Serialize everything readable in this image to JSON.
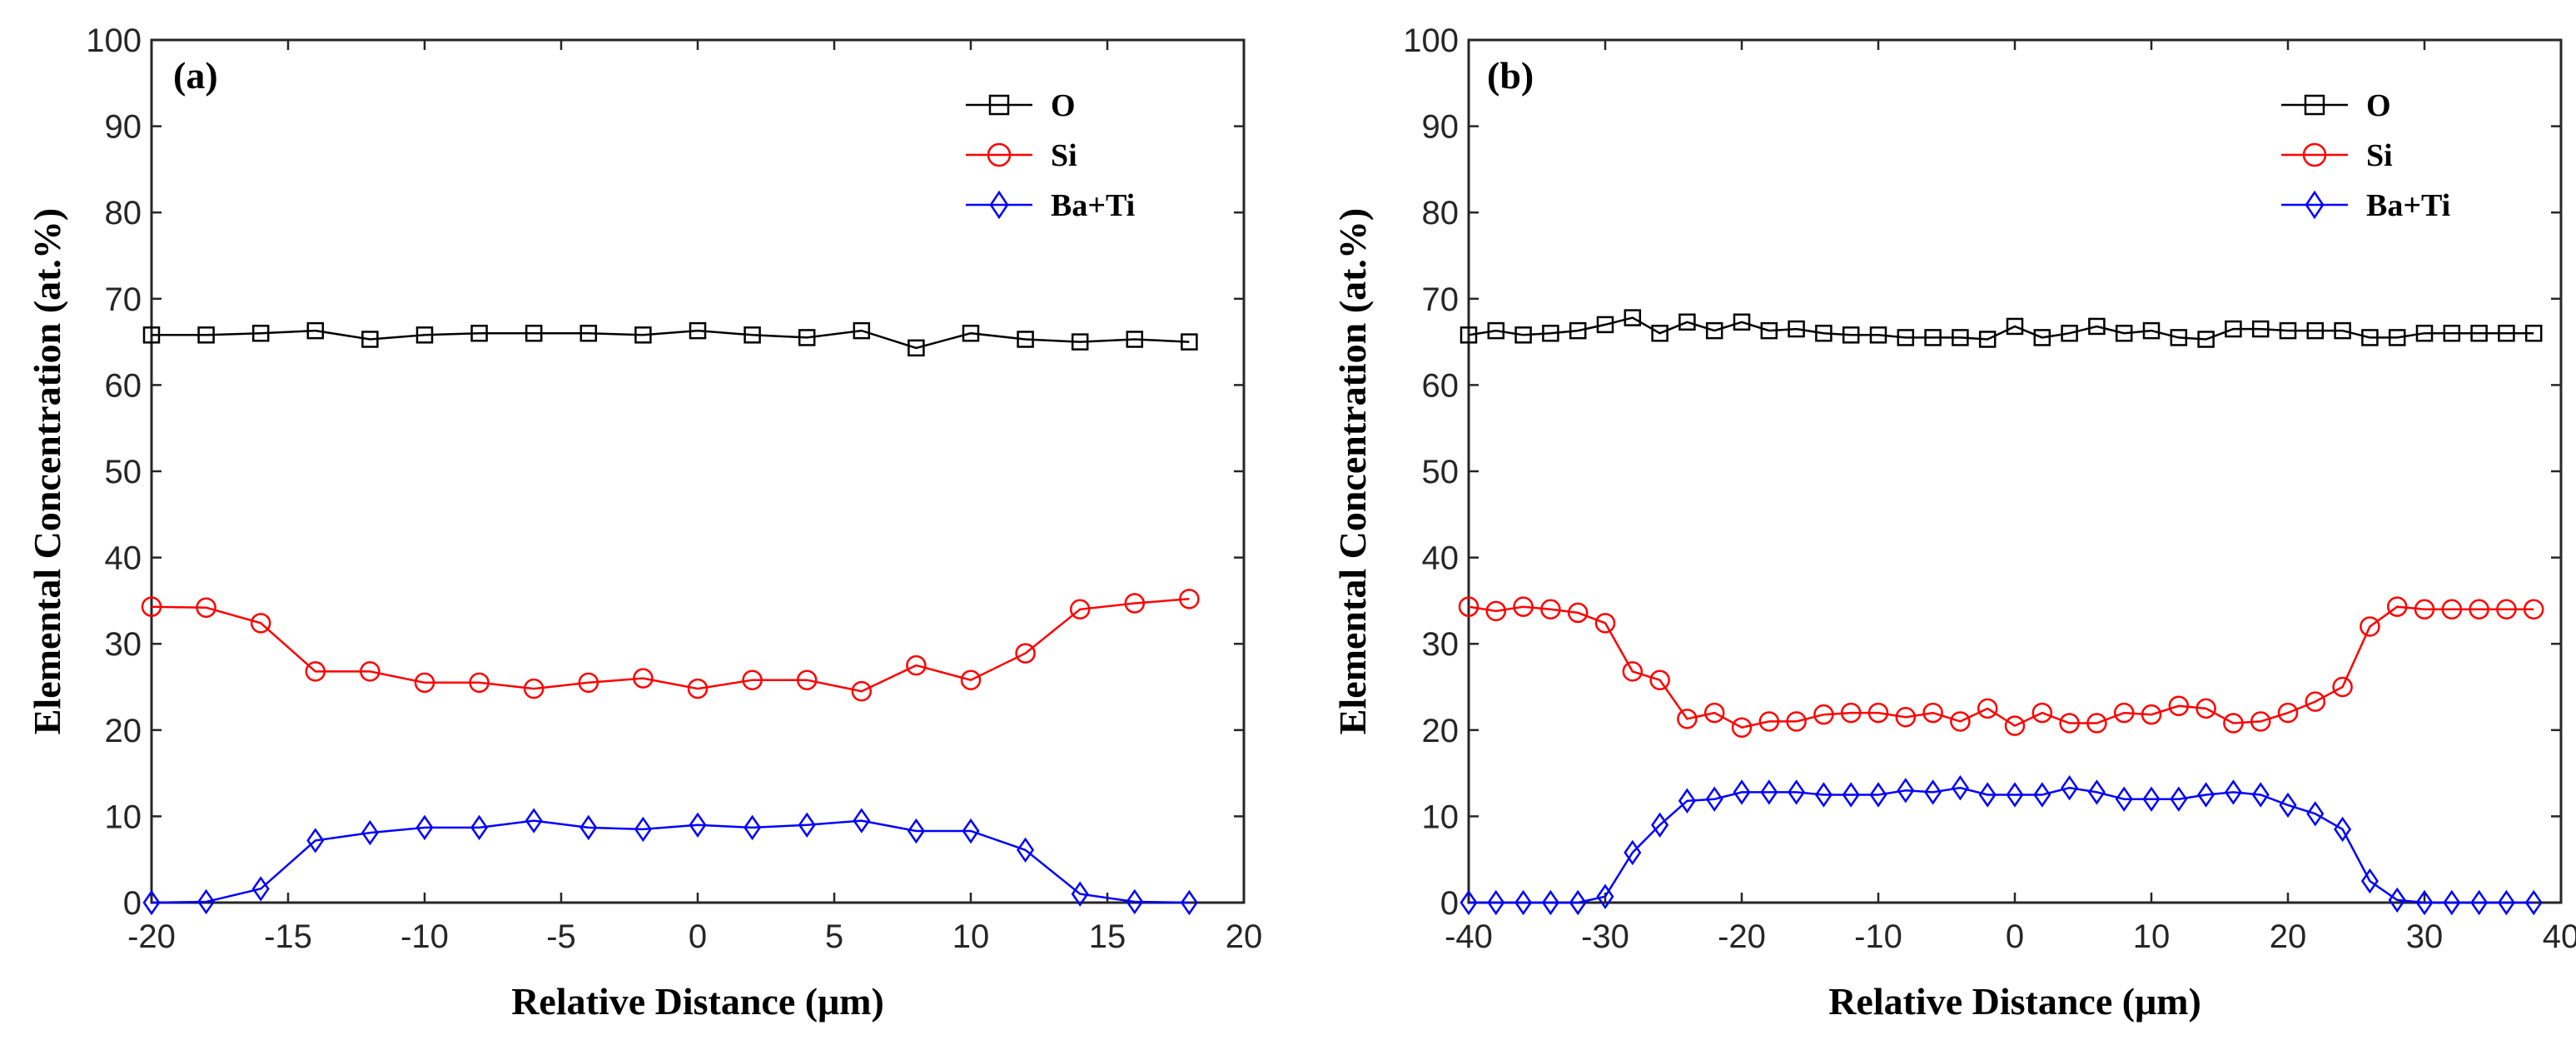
{
  "chart_data": [
    {
      "type": "line",
      "panel_label": "(a)",
      "xlabel": "Relative Distance (μm)",
      "ylabel": "Elemental Concentration (at.%)",
      "xlim": [
        -20,
        20
      ],
      "ylim": [
        0,
        100
      ],
      "xticks": [
        -20,
        -15,
        -10,
        -5,
        0,
        5,
        10,
        15,
        20
      ],
      "yticks": [
        0,
        10,
        20,
        30,
        40,
        50,
        60,
        70,
        80,
        90,
        100
      ],
      "legend_position": "top-right",
      "x": [
        -20,
        -18,
        -16,
        -14,
        -12,
        -10,
        -8,
        -6,
        -4,
        -2,
        0,
        2,
        4,
        6,
        8,
        10,
        12,
        14,
        16,
        18
      ],
      "series": [
        {
          "name": "O",
          "color": "#000000",
          "marker": "square",
          "values": [
            65.8,
            65.8,
            66.0,
            66.3,
            65.3,
            65.8,
            66.0,
            66.0,
            66.0,
            65.8,
            66.3,
            65.8,
            65.5,
            66.3,
            64.3,
            66.0,
            65.3,
            65.0,
            65.3,
            65.0
          ]
        },
        {
          "name": "Si",
          "color": "#ff0000",
          "marker": "circle",
          "values": [
            34.3,
            34.2,
            32.4,
            26.8,
            26.8,
            25.5,
            25.5,
            24.8,
            25.5,
            26.0,
            24.8,
            25.8,
            25.8,
            24.5,
            27.5,
            25.8,
            28.9,
            34.0,
            34.7,
            35.2
          ]
        },
        {
          "name": "Ba+Ti",
          "color": "#0000ff",
          "marker": "diamond",
          "values": [
            0.0,
            0.1,
            1.6,
            7.2,
            8.1,
            8.7,
            8.7,
            9.5,
            8.7,
            8.5,
            9.0,
            8.7,
            9.0,
            9.5,
            8.3,
            8.3,
            6.1,
            1.0,
            0.1,
            0.0
          ]
        }
      ]
    },
    {
      "type": "line",
      "panel_label": "(b)",
      "xlabel": "Relative Distance (μm)",
      "ylabel": "Elemental Concentration (at.%)",
      "xlim": [
        -40,
        40
      ],
      "ylim": [
        0,
        100
      ],
      "xticks": [
        -40,
        -30,
        -20,
        -10,
        0,
        10,
        20,
        30,
        40
      ],
      "yticks": [
        0,
        10,
        20,
        30,
        40,
        50,
        60,
        70,
        80,
        90,
        100
      ],
      "legend_position": "top-right",
      "x": [
        -40,
        -38,
        -36,
        -34,
        -32,
        -30,
        -28,
        -26,
        -24,
        -22,
        -20,
        -18,
        -16,
        -14,
        -12,
        -10,
        -8,
        -6,
        -4,
        -2,
        0,
        2,
        4,
        6,
        8,
        10,
        12,
        14,
        16,
        18,
        20,
        22,
        24,
        26,
        28,
        30,
        32,
        34,
        36,
        38
      ],
      "series": [
        {
          "name": "O",
          "color": "#000000",
          "marker": "square",
          "values": [
            65.8,
            66.3,
            65.8,
            66.0,
            66.3,
            67.0,
            67.8,
            66.0,
            67.3,
            66.3,
            67.3,
            66.3,
            66.5,
            66.0,
            65.8,
            65.8,
            65.5,
            65.5,
            65.5,
            65.3,
            66.8,
            65.5,
            66.0,
            66.8,
            66.0,
            66.3,
            65.5,
            65.3,
            66.5,
            66.5,
            66.3,
            66.3,
            66.3,
            65.5,
            65.5,
            66.0,
            66.0,
            66.0,
            66.0,
            66.0
          ]
        },
        {
          "name": "Si",
          "color": "#ff0000",
          "marker": "circle",
          "values": [
            34.3,
            33.8,
            34.3,
            34.0,
            33.6,
            32.4,
            26.8,
            25.8,
            21.3,
            22.0,
            20.3,
            21.0,
            21.0,
            21.8,
            22.0,
            22.0,
            21.5,
            22.0,
            21.0,
            22.5,
            20.5,
            22.0,
            20.8,
            20.8,
            22.0,
            21.8,
            22.8,
            22.5,
            20.8,
            21.0,
            22.0,
            23.3,
            25.0,
            32.0,
            34.3,
            34.0,
            34.0,
            34.0,
            34.0,
            34.0
          ]
        },
        {
          "name": "Ba+Ti",
          "color": "#0000ff",
          "marker": "diamond",
          "values": [
            0.0,
            0.0,
            0.0,
            0.0,
            0.0,
            0.7,
            5.8,
            9.0,
            11.8,
            12.0,
            12.8,
            12.8,
            12.8,
            12.5,
            12.5,
            12.5,
            13.0,
            12.8,
            13.3,
            12.5,
            12.5,
            12.5,
            13.3,
            12.8,
            12.0,
            12.0,
            12.0,
            12.5,
            12.8,
            12.5,
            11.3,
            10.3,
            8.5,
            2.5,
            0.3,
            0.0,
            0.0,
            0.0,
            0.0,
            0.0
          ]
        }
      ]
    }
  ]
}
